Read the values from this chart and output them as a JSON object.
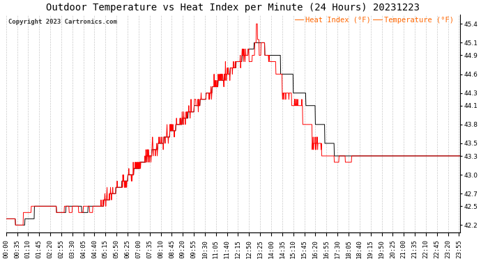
{
  "title": "Outdoor Temperature vs Heat Index per Minute (24 Hours) 20231223",
  "copyright": "Copyright 2023 Cartronics.com",
  "legend_heat": "Heat Index (°F)",
  "legend_temp": "Temperature (°F)",
  "ylabel_right_ticks": [
    42.2,
    42.5,
    42.7,
    43.0,
    43.3,
    43.5,
    43.8,
    44.1,
    44.3,
    44.6,
    44.9,
    45.1,
    45.4
  ],
  "ylim": [
    42.08,
    45.55
  ],
  "background_color": "#ffffff",
  "grid_color": "#bbbbbb",
  "heat_index_color": "#ff0000",
  "temperature_color": "#000000",
  "legend_color": "#ff6600",
  "title_fontsize": 10,
  "tick_fontsize": 6.5,
  "total_minutes": 1440,
  "x_tick_interval": 35
}
